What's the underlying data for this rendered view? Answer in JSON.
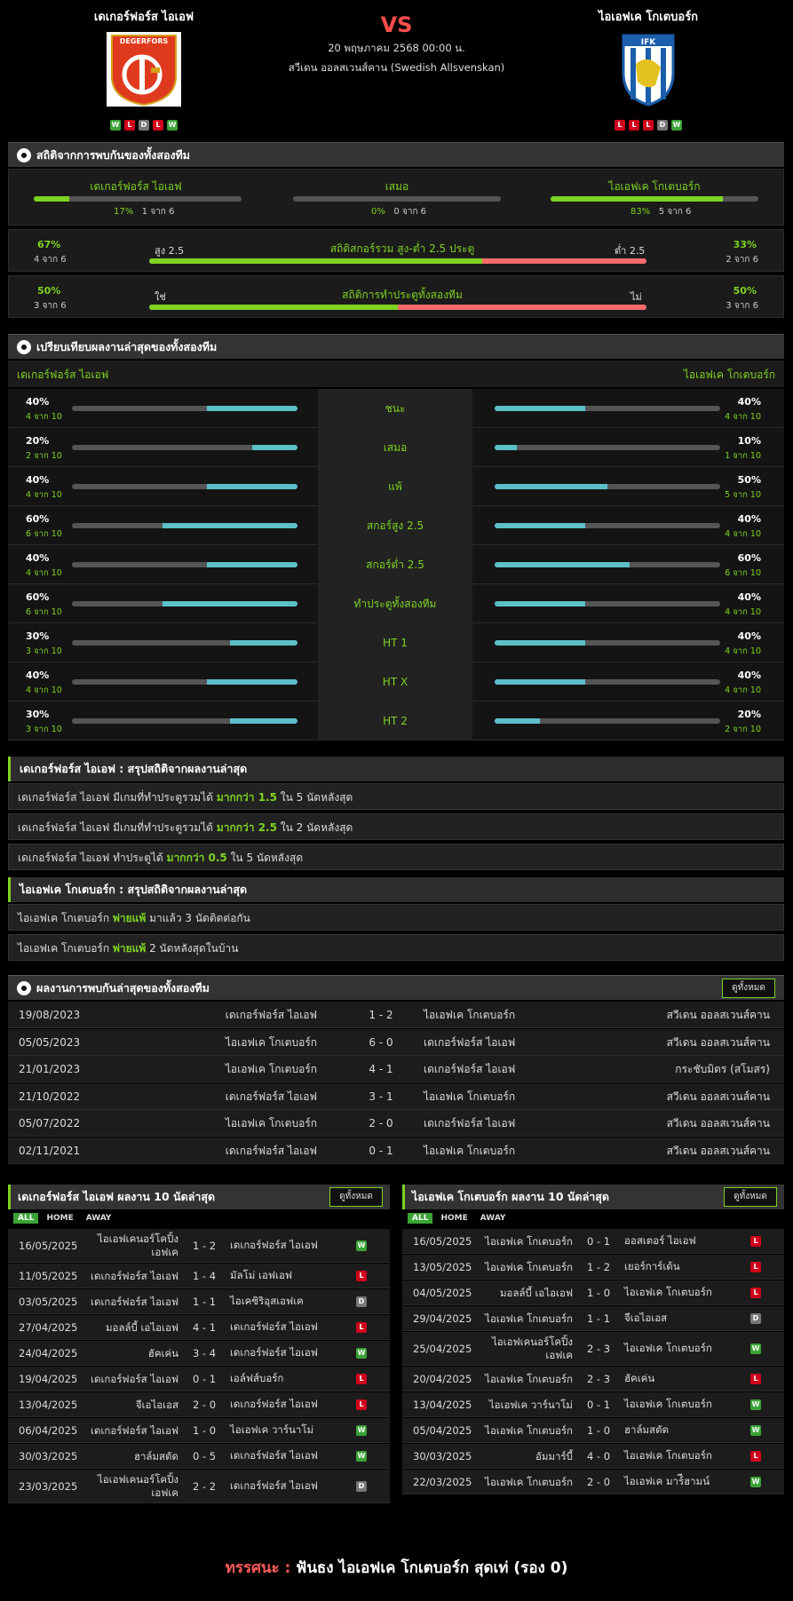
{
  "match": {
    "home": "เดเกอร์ฟอร์ส ไอเอฟ",
    "away": "ไอเอฟเค โกเตบอร์ก",
    "vs": "VS",
    "datetime": "20 พฤษภาคม 2568 00:00 น.",
    "league": "สวีเดน ออลสเวนส์คาน (Swedish Allsvenskan)",
    "home_form": [
      "W",
      "L",
      "D",
      "L",
      "W"
    ],
    "away_form": [
      "L",
      "L",
      "L",
      "D",
      "W"
    ],
    "home_logo_text": "DEGERFORS",
    "away_logo_text": "IFK"
  },
  "h2h_stats": {
    "title": "สถิติจากการพบกันของทั้งสองทีม",
    "home": {
      "label": "เดเกอร์ฟอร์ส ไอเอฟ",
      "pct": "17%",
      "count": "1 จาก 6",
      "value": 17
    },
    "draw": {
      "label": "เสมอ",
      "pct": "0%",
      "count": "0 จาก 6",
      "value": 0
    },
    "away": {
      "label": "ไอเอฟเค โกเตบอร์ก",
      "pct": "83%",
      "count": "5 จาก 6",
      "value": 83
    },
    "ou": {
      "title": "สถิติสกอร์รวม สูง-ต่ำ 2.5 ประตู",
      "left_label": "สูง 2.5",
      "right_label": "ต่ำ 2.5",
      "left_pct": "67%",
      "left_count": "4 จาก 6",
      "right_pct": "33%",
      "right_count": "2 จาก 6",
      "value": 67
    },
    "btts": {
      "title": "สถิติการทำประตูทั้งสองทีม",
      "left_label": "ใช่",
      "right_label": "ไม่",
      "left_pct": "50%",
      "left_count": "3 จาก 6",
      "right_pct": "50%",
      "right_count": "3 จาก 6",
      "value": 50
    }
  },
  "compare": {
    "title": "เปรียบเทียบผลงานล่าสุดของทั้งสองทีม",
    "home": "เดเกอร์ฟอร์ส ไอเอฟ",
    "away": "ไอเอฟเค โกเตบอร์ก",
    "rows": [
      {
        "label": "ชนะ",
        "hp": "40%",
        "hc": "4 จาก 10",
        "hv": 40,
        "ap": "40%",
        "ac": "4 จาก 10",
        "av": 40
      },
      {
        "label": "เสมอ",
        "hp": "20%",
        "hc": "2 จาก 10",
        "hv": 20,
        "ap": "10%",
        "ac": "1 จาก 10",
        "av": 10
      },
      {
        "label": "แพ้",
        "hp": "40%",
        "hc": "4 จาก 10",
        "hv": 40,
        "ap": "50%",
        "ac": "5 จาก 10",
        "av": 50
      },
      {
        "label": "สกอร์สูง 2.5",
        "hp": "60%",
        "hc": "6 จาก 10",
        "hv": 60,
        "ap": "40%",
        "ac": "4 จาก 10",
        "av": 40
      },
      {
        "label": "สกอร์ต่ำ 2.5",
        "hp": "40%",
        "hc": "4 จาก 10",
        "hv": 40,
        "ap": "60%",
        "ac": "6 จาก 10",
        "av": 60
      },
      {
        "label": "ทำประตูทั้งสองทีม",
        "hp": "60%",
        "hc": "6 จาก 10",
        "hv": 60,
        "ap": "40%",
        "ac": "4 จาก 10",
        "av": 40
      },
      {
        "label": "HT 1",
        "hp": "30%",
        "hc": "3 จาก 10",
        "hv": 30,
        "ap": "40%",
        "ac": "4 จาก 10",
        "av": 40
      },
      {
        "label": "HT X",
        "hp": "40%",
        "hc": "4 จาก 10",
        "hv": 40,
        "ap": "40%",
        "ac": "4 จาก 10",
        "av": 40
      },
      {
        "label": "HT 2",
        "hp": "30%",
        "hc": "3 จาก 10",
        "hv": 30,
        "ap": "20%",
        "ac": "2 จาก 10",
        "av": 20
      }
    ]
  },
  "summary_home": {
    "title": "เดเกอร์ฟอร์ส ไอเอฟ : สรุปสถิติจากผลงานล่าสุด",
    "rows": [
      {
        "a": "เดเกอร์ฟอร์ส ไอเอฟ  มีเกมที่ทำประตูรวมได้ ",
        "b": "มากกว่า  1.5",
        "c": "  ใน 5 นัดหลังสุด"
      },
      {
        "a": "เดเกอร์ฟอร์ส ไอเอฟ  มีเกมที่ทำประตูรวมได้ ",
        "b": "มากกว่า  2.5",
        "c": "  ใน 2 นัดหลังสุด"
      },
      {
        "a": "เดเกอร์ฟอร์ส ไอเอฟ  ทำประตูได้ ",
        "b": "มากกว่า  0.5",
        "c": "  ใน 5 นัดหลังสุด"
      }
    ]
  },
  "summary_away": {
    "title": "ไอเอฟเค โกเตบอร์ก : สรุปสถิติจากผลงานล่าสุด",
    "rows": [
      {
        "a": "ไอเอฟเค โกเตบอร์ก  ",
        "b": "พ่ายแพ้",
        "c": "  มาแล้ว 3 นัดติดต่อกัน"
      },
      {
        "a": "ไอเอฟเค โกเตบอร์ก  ",
        "b": "พ่ายแพ้",
        "c": "  2  นัดหลังสุดในบ้าน"
      }
    ]
  },
  "h2h_results": {
    "title": "ผลงานการพบกันล่าสุดของทั้งสองทีม",
    "view_all": "ดูทั้งหมด",
    "rows": [
      {
        "date": "19/08/2023",
        "home": "เดเกอร์ฟอร์ส ไอเอฟ",
        "score": "1 - 2",
        "away": "ไอเอฟเค โกเตบอร์ก",
        "comp": "สวีเดน ออลสเวนส์คาน"
      },
      {
        "date": "05/05/2023",
        "home": "ไอเอฟเค โกเตบอร์ก",
        "score": "6 - 0",
        "away": "เดเกอร์ฟอร์ส ไอเอฟ",
        "comp": "สวีเดน ออลสเวนส์คาน"
      },
      {
        "date": "21/01/2023",
        "home": "ไอเอฟเค โกเตบอร์ก",
        "score": "4 - 1",
        "away": "เดเกอร์ฟอร์ส ไอเอฟ",
        "comp": "กระชับมิตร (สโมสร)"
      },
      {
        "date": "21/10/2022",
        "home": "เดเกอร์ฟอร์ส ไอเอฟ",
        "score": "3 - 1",
        "away": "ไอเอฟเค โกเตบอร์ก",
        "comp": "สวีเดน ออลสเวนส์คาน"
      },
      {
        "date": "05/07/2022",
        "home": "ไอเอฟเค โกเตบอร์ก",
        "score": "2 - 0",
        "away": "เดเกอร์ฟอร์ส ไอเอฟ",
        "comp": "สวีเดน ออลสเวนส์คาน"
      },
      {
        "date": "02/11/2021",
        "home": "เดเกอร์ฟอร์ส ไอเอฟ",
        "score": "0 - 1",
        "away": "ไอเอฟเค โกเตบอร์ก",
        "comp": "สวีเดน ออลสเวนส์คาน"
      }
    ]
  },
  "last10_home": {
    "title": "เดเกอร์ฟอร์ส ไอเอฟ ผลงาน 10 นัดล่าสุด",
    "view_all": "ดูทั้งหมด",
    "tabs": [
      "ALL",
      "HOME",
      "AWAY"
    ],
    "rows": [
      {
        "date": "16/05/2025",
        "home": "ไอเอฟเคนอร์โคปิ้ง เอฟเค",
        "score": "1 - 2",
        "away": "เดเกอร์ฟอร์ส ไอเอฟ",
        "res": "W"
      },
      {
        "date": "11/05/2025",
        "home": "เดเกอร์ฟอร์ส ไอเอฟ",
        "score": "1 - 4",
        "away": "มัลโม่ เอฟเอฟ",
        "res": "L"
      },
      {
        "date": "03/05/2025",
        "home": "เดเกอร์ฟอร์ส ไอเอฟ",
        "score": "1 - 1",
        "away": "ไอเคซิริอุสเอฟเค",
        "res": "D"
      },
      {
        "date": "27/04/2025",
        "home": "มอลล์บี้ เอไอเอฟ",
        "score": "4 - 1",
        "away": "เดเกอร์ฟอร์ส ไอเอฟ",
        "res": "L"
      },
      {
        "date": "24/04/2025",
        "home": "ฮัคเค่น",
        "score": "3 - 4",
        "away": "เดเกอร์ฟอร์ส ไอเอฟ",
        "res": "W"
      },
      {
        "date": "19/04/2025",
        "home": "เดเกอร์ฟอร์ส ไอเอฟ",
        "score": "0 - 1",
        "away": "เอล์ฟส์บอร์ก",
        "res": "L"
      },
      {
        "date": "13/04/2025",
        "home": "จีเอไอเอส",
        "score": "2 - 0",
        "away": "เดเกอร์ฟอร์ส ไอเอฟ",
        "res": "L"
      },
      {
        "date": "06/04/2025",
        "home": "เดเกอร์ฟอร์ส ไอเอฟ",
        "score": "1 - 0",
        "away": "ไอเอฟเค วาร์นาโม่",
        "res": "W"
      },
      {
        "date": "30/03/2025",
        "home": "ฮาล์มสตัด",
        "score": "0 - 5",
        "away": "เดเกอร์ฟอร์ส ไอเอฟ",
        "res": "W"
      },
      {
        "date": "23/03/2025",
        "home": "ไอเอฟเคนอร์โคปิ้ง เอฟเค",
        "score": "2 - 2",
        "away": "เดเกอร์ฟอร์ส ไอเอฟ",
        "res": "D"
      }
    ]
  },
  "last10_away": {
    "title": "ไอเอฟเค โกเตบอร์ก ผลงาน 10 นัดล่าสุด",
    "view_all": "ดูทั้งหมด",
    "tabs": [
      "ALL",
      "HOME",
      "AWAY"
    ],
    "rows": [
      {
        "date": "16/05/2025",
        "home": "ไอเอฟเค โกเตบอร์ก",
        "score": "0 - 1",
        "away": "ออสเตอร์ ไอเอฟ",
        "res": "L"
      },
      {
        "date": "13/05/2025",
        "home": "ไอเอฟเค โกเตบอร์ก",
        "score": "1 - 2",
        "away": "เยอร์การ์เด้น",
        "res": "L"
      },
      {
        "date": "04/05/2025",
        "home": "มอลล์บี้ เอไอเอฟ",
        "score": "1 - 0",
        "away": "ไอเอฟเค โกเตบอร์ก",
        "res": "L"
      },
      {
        "date": "29/04/2025",
        "home": "ไอเอฟเค โกเตบอร์ก",
        "score": "1 - 1",
        "away": "จีเอไอเอส",
        "res": "D"
      },
      {
        "date": "25/04/2025",
        "home": "ไอเอฟเคนอร์โคปิ้ง เอฟเค",
        "score": "2 - 3",
        "away": "ไอเอฟเค โกเตบอร์ก",
        "res": "W"
      },
      {
        "date": "20/04/2025",
        "home": "ไอเอฟเค โกเตบอร์ก",
        "score": "2 - 3",
        "away": "ฮัคเค่น",
        "res": "L"
      },
      {
        "date": "13/04/2025",
        "home": "ไอเอฟเค วาร์นาโม่",
        "score": "0 - 1",
        "away": "ไอเอฟเค โกเตบอร์ก",
        "res": "W"
      },
      {
        "date": "05/04/2025",
        "home": "ไอเอฟเค โกเตบอร์ก",
        "score": "1 - 0",
        "away": "ฮาล์มสตัด",
        "res": "W"
      },
      {
        "date": "30/03/2025",
        "home": "อัมมาร์บี้",
        "score": "4 - 0",
        "away": "ไอเอฟเค โกเตบอร์ก",
        "res": "L"
      },
      {
        "date": "22/03/2025",
        "home": "ไอเอฟเค โกเตบอร์ก",
        "score": "2 - 0",
        "away": "ไอเอฟเค มาร์ีฮามน์",
        "res": "W"
      }
    ]
  },
  "verdict": {
    "label": "ทรรศนะ :",
    "text": "  ฟันธง ไอเอฟเค โกเตบอร์ก สุดเท่ (รอง 0)"
  },
  "colors": {
    "green": "#7ed321",
    "cyan": "#5bc0c8",
    "red": "#ff6b6b",
    "win": "#3aa335",
    "loss": "#d0021b",
    "draw": "#777777"
  }
}
